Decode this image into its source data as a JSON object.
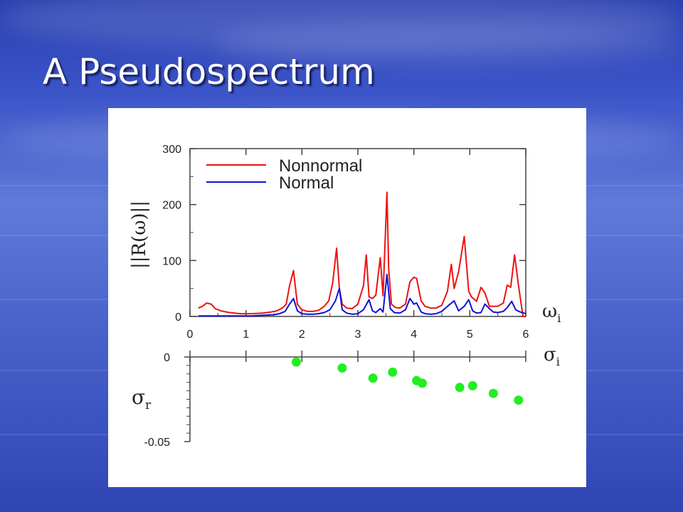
{
  "slide": {
    "title": "A Pseudospectrum"
  },
  "colors": {
    "nonnormal": "#ee1111",
    "normal": "#1010dd",
    "eigenvalue": "#22ee22",
    "axis": "#444444"
  },
  "chart_data": [
    {
      "type": "line",
      "ylabel": "||R(ω)||",
      "xlabel": "ω",
      "xlabel_sub": "i",
      "xlim": [
        0,
        6
      ],
      "ylim": [
        0,
        300
      ],
      "xticks": [
        0,
        1,
        2,
        3,
        4,
        5,
        6
      ],
      "yticks": [
        0,
        100,
        200,
        300
      ],
      "legend_position": "top-left",
      "grid": false,
      "series": [
        {
          "name": "Nonnormal",
          "color": "#ee1111",
          "x": [
            0.15,
            0.22,
            0.3,
            0.38,
            0.45,
            0.55,
            0.7,
            0.9,
            1.1,
            1.3,
            1.45,
            1.55,
            1.65,
            1.72,
            1.78,
            1.85,
            1.92,
            2.0,
            2.1,
            2.2,
            2.3,
            2.4,
            2.48,
            2.55,
            2.62,
            2.67,
            2.72,
            2.8,
            2.9,
            3.0,
            3.1,
            3.15,
            3.2,
            3.26,
            3.32,
            3.4,
            3.45,
            3.52,
            3.55,
            3.6,
            3.67,
            3.75,
            3.85,
            3.93,
            4.0,
            4.05,
            4.13,
            4.2,
            4.3,
            4.4,
            4.5,
            4.6,
            4.67,
            4.72,
            4.8,
            4.9,
            4.98,
            5.03,
            5.12,
            5.2,
            5.27,
            5.35,
            5.42,
            5.5,
            5.6,
            5.67,
            5.73,
            5.8,
            5.87,
            5.95,
            6.0
          ],
          "y": [
            15,
            18,
            24,
            22,
            14,
            10,
            7,
            5,
            5,
            6,
            8,
            10,
            15,
            22,
            55,
            82,
            22,
            12,
            9,
            9,
            11,
            18,
            28,
            60,
            122,
            50,
            22,
            15,
            14,
            22,
            55,
            110,
            35,
            32,
            38,
            105,
            37,
            222,
            85,
            22,
            16,
            15,
            22,
            62,
            70,
            68,
            28,
            18,
            15,
            15,
            20,
            45,
            93,
            50,
            80,
            143,
            45,
            35,
            27,
            52,
            42,
            18,
            18,
            18,
            24,
            56,
            52,
            110,
            55,
            0,
            0
          ]
        },
        {
          "name": "Normal",
          "color": "#1010dd",
          "x": [
            0.15,
            0.3,
            0.5,
            0.7,
            0.9,
            1.1,
            1.3,
            1.5,
            1.6,
            1.7,
            1.78,
            1.85,
            1.92,
            2.0,
            2.1,
            2.2,
            2.3,
            2.4,
            2.5,
            2.6,
            2.67,
            2.72,
            2.8,
            2.9,
            3.0,
            3.1,
            3.2,
            3.26,
            3.32,
            3.4,
            3.45,
            3.52,
            3.58,
            3.65,
            3.75,
            3.85,
            3.93,
            4.0,
            4.05,
            4.13,
            4.2,
            4.3,
            4.4,
            4.5,
            4.6,
            4.72,
            4.8,
            4.9,
            4.98,
            5.05,
            5.12,
            5.2,
            5.27,
            5.35,
            5.42,
            5.5,
            5.6,
            5.67,
            5.75,
            5.82,
            5.9,
            6.0
          ],
          "y": [
            1,
            1,
            1,
            1,
            1,
            1,
            2,
            3,
            5,
            9,
            22,
            32,
            10,
            5,
            4,
            4,
            5,
            7,
            12,
            28,
            50,
            12,
            6,
            4,
            5,
            12,
            30,
            10,
            7,
            14,
            8,
            75,
            14,
            7,
            6,
            12,
            32,
            22,
            24,
            8,
            5,
            4,
            5,
            9,
            18,
            28,
            10,
            18,
            30,
            10,
            6,
            7,
            22,
            14,
            8,
            7,
            9,
            16,
            27,
            12,
            8,
            5
          ]
        }
      ]
    },
    {
      "type": "scatter",
      "xlabel": "σ",
      "xlabel_sub": "i",
      "ylabel": "σ",
      "ylabel_sub": "r",
      "xlim": [
        0,
        6
      ],
      "ylim": [
        -0.05,
        0
      ],
      "yticks": [
        0,
        -0.05
      ],
      "series": [
        {
          "color": "#22ee22",
          "x": [
            1.9,
            2.72,
            3.27,
            3.62,
            4.05,
            4.15,
            4.82,
            5.05,
            5.42,
            5.87
          ],
          "y": [
            -0.003,
            -0.0065,
            -0.0125,
            -0.009,
            -0.014,
            -0.0155,
            -0.018,
            -0.017,
            -0.0215,
            -0.0255
          ]
        }
      ]
    }
  ]
}
